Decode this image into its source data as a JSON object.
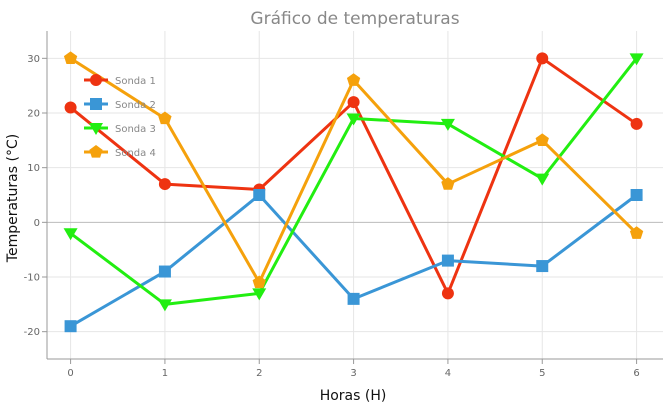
{
  "chart_data": {
    "type": "line",
    "title": "Gráfico de temperaturas",
    "xlabel": "Horas (H)",
    "ylabel": "Temperaturas (°C)",
    "x": [
      0,
      1,
      2,
      3,
      4,
      5,
      6
    ],
    "xlim": [
      -0.25,
      6.28
    ],
    "ylim": [
      -25,
      35
    ],
    "yticks": [
      -20,
      -10,
      0,
      10,
      20,
      30
    ],
    "grid": true,
    "legend": "top-left",
    "series": [
      {
        "name": "Sonda 1",
        "color": "#ee3311",
        "marker": "circle",
        "values": [
          21,
          7,
          6,
          22,
          -13,
          30,
          18
        ]
      },
      {
        "name": "Sonda 2",
        "color": "#3a96d6",
        "marker": "square",
        "values": [
          -19,
          -9,
          5,
          -14,
          -7,
          -8,
          5
        ]
      },
      {
        "name": "Sonda 3",
        "color": "#22ee11",
        "marker": "triangle",
        "values": [
          -2,
          -15,
          -13,
          19,
          18,
          8,
          30
        ]
      },
      {
        "name": "Sonda 4",
        "color": "#f5a10c",
        "marker": "pentagon",
        "values": [
          30,
          19,
          -11,
          26,
          7,
          15,
          -2
        ]
      }
    ]
  }
}
